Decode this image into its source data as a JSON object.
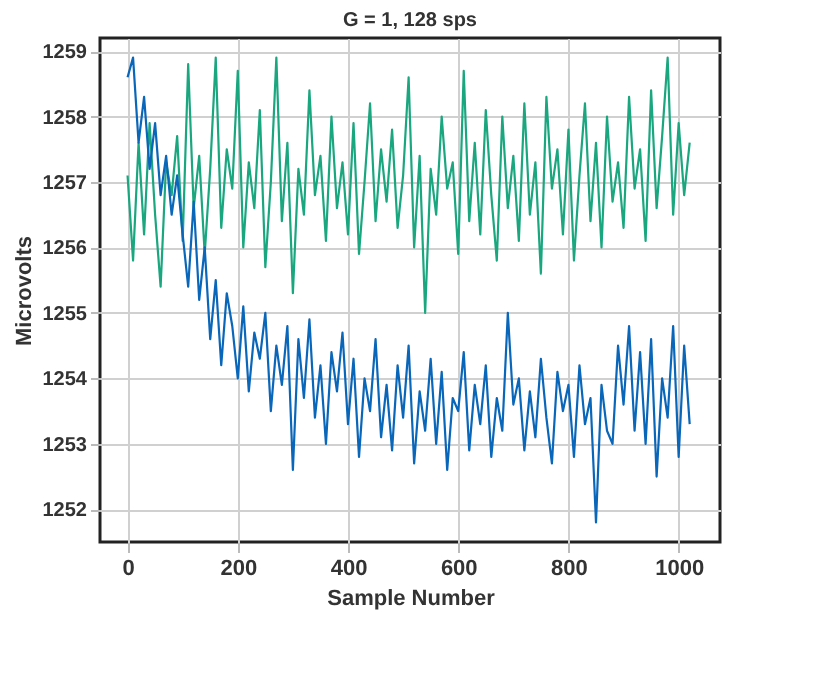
{
  "chart_data": {
    "type": "line",
    "title": "G = 1, 128 sps",
    "xlabel": "Sample Number",
    "ylabel": "Microvolts",
    "x": [
      0,
      10,
      20,
      30,
      40,
      50,
      60,
      70,
      80,
      90,
      100,
      110,
      120,
      130,
      140,
      150,
      160,
      170,
      180,
      190,
      200,
      210,
      220,
      230,
      240,
      250,
      260,
      270,
      280,
      290,
      300,
      310,
      320,
      330,
      340,
      350,
      360,
      370,
      380,
      390,
      400,
      410,
      420,
      430,
      440,
      450,
      460,
      470,
      480,
      490,
      500,
      510,
      520,
      530,
      540,
      550,
      560,
      570,
      580,
      590,
      600,
      610,
      620,
      630,
      640,
      650,
      660,
      670,
      680,
      690,
      700,
      710,
      720,
      730,
      740,
      750,
      760,
      770,
      780,
      790,
      800,
      810,
      820,
      830,
      840,
      850,
      860,
      870,
      880,
      890,
      900,
      910,
      920,
      930,
      940,
      950,
      960,
      970,
      980,
      990,
      1000,
      1010,
      1020
    ],
    "series": [
      {
        "color": "#1aa67e",
        "values": [
          1257.1,
          1255.8,
          1257.6,
          1256.2,
          1257.9,
          1256.5,
          1255.4,
          1257.3,
          1256.8,
          1257.7,
          1256.1,
          1258.8,
          1256.6,
          1257.4,
          1255.9,
          1257.2,
          1258.9,
          1256.3,
          1257.5,
          1256.9,
          1258.7,
          1256.0,
          1257.3,
          1256.6,
          1258.1,
          1255.7,
          1257.0,
          1258.9,
          1256.4,
          1257.6,
          1255.3,
          1257.2,
          1256.5,
          1258.4,
          1256.8,
          1257.4,
          1256.1,
          1258.0,
          1256.6,
          1257.3,
          1256.2,
          1257.9,
          1255.9,
          1257.0,
          1258.2,
          1256.4,
          1257.5,
          1256.7,
          1257.8,
          1256.3,
          1257.1,
          1258.6,
          1256.0,
          1257.4,
          1255.0,
          1257.2,
          1256.5,
          1258.0,
          1256.9,
          1257.3,
          1255.9,
          1258.7,
          1256.4,
          1257.6,
          1256.2,
          1258.1,
          1256.8,
          1255.8,
          1258.0,
          1256.6,
          1257.4,
          1256.1,
          1258.2,
          1256.5,
          1257.3,
          1255.6,
          1258.3,
          1256.9,
          1257.5,
          1256.2,
          1257.8,
          1255.8,
          1257.1,
          1258.2,
          1256.4,
          1257.6,
          1256.0,
          1258.0,
          1256.7,
          1257.3,
          1256.3,
          1258.3,
          1256.9,
          1257.5,
          1256.1,
          1258.4,
          1256.6,
          1257.7,
          1258.9,
          1256.5,
          1257.9,
          1256.8,
          1257.6
        ]
      },
      {
        "color": "#0a66b8",
        "values": [
          1258.6,
          1258.9,
          1257.6,
          1258.3,
          1257.2,
          1257.9,
          1256.8,
          1257.4,
          1256.5,
          1257.1,
          1256.2,
          1255.4,
          1256.7,
          1255.2,
          1256.0,
          1254.6,
          1255.5,
          1254.2,
          1255.3,
          1254.8,
          1254.0,
          1255.1,
          1253.8,
          1254.7,
          1254.3,
          1255.0,
          1253.5,
          1254.5,
          1253.9,
          1254.8,
          1252.6,
          1254.6,
          1253.7,
          1254.9,
          1253.4,
          1254.2,
          1253.0,
          1254.4,
          1253.8,
          1254.7,
          1253.3,
          1254.3,
          1252.8,
          1254.0,
          1253.5,
          1254.6,
          1253.1,
          1253.9,
          1252.9,
          1254.2,
          1253.4,
          1254.5,
          1252.7,
          1253.8,
          1253.2,
          1254.3,
          1253.0,
          1254.1,
          1252.6,
          1253.7,
          1253.5,
          1254.4,
          1252.9,
          1253.9,
          1253.3,
          1254.2,
          1252.8,
          1253.7,
          1253.2,
          1255.0,
          1253.6,
          1254.0,
          1252.9,
          1253.8,
          1253.1,
          1254.3,
          1253.4,
          1252.7,
          1254.1,
          1253.5,
          1253.9,
          1252.8,
          1254.2,
          1253.3,
          1253.7,
          1251.8,
          1253.9,
          1253.2,
          1253.0,
          1254.5,
          1253.6,
          1254.8,
          1253.2,
          1254.4,
          1253.0,
          1254.6,
          1252.5,
          1254.0,
          1253.4,
          1254.8,
          1252.8,
          1254.5,
          1253.3
        ]
      }
    ],
    "xlim": [
      -50,
      1075
    ],
    "xticks": [
      0,
      200,
      400,
      600,
      800,
      1000
    ],
    "ylim": [
      1251.5,
      1259.2
    ],
    "yticks": [
      1252,
      1253,
      1254,
      1255,
      1256,
      1257,
      1258,
      1259
    ],
    "grid": true,
    "legend": false
  }
}
